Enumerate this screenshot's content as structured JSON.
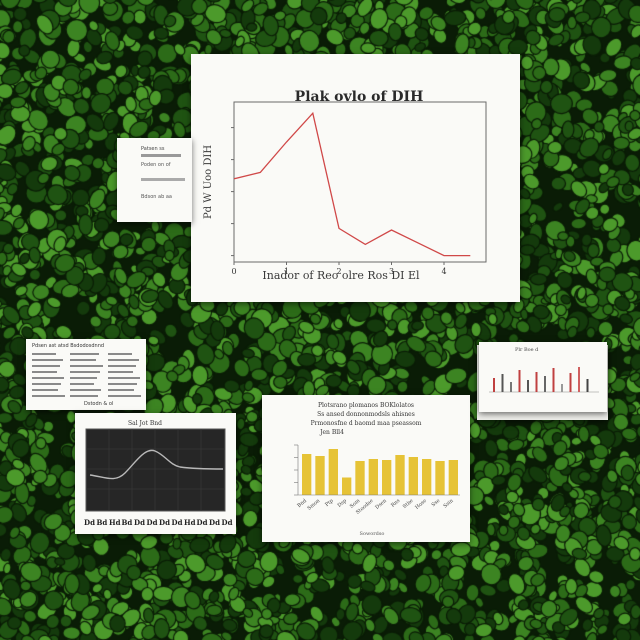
{
  "scene": {
    "background_palette": [
      "#143a0c",
      "#1f5312",
      "#2c6b18",
      "#3c8422",
      "#4c9a2b"
    ],
    "leaf_outline_color": "#0a1c06"
  },
  "main_chart": {
    "title": "Plak ovlo of DIH",
    "xlabel": "Inador of Reo olre Ros DI El",
    "ylabel": "Pd W Uoo DIH",
    "line_color": "#d04848"
  },
  "chart_data": [
    {
      "type": "line",
      "title": "Plak ovlo of DIH",
      "xlabel": "Inador of Reo olre Ros DI El",
      "ylabel": "Pd W Uoo DIH",
      "x": [
        0,
        0.5,
        1,
        1.5,
        2,
        2.5,
        3,
        3.5,
        4,
        4.5
      ],
      "y": [
        0.52,
        0.56,
        0.75,
        0.93,
        0.21,
        0.11,
        0.2,
        0.12,
        0.04,
        0.04
      ],
      "xlim": [
        0,
        4.8
      ],
      "ylim": [
        0,
        1
      ],
      "xticks": [
        "0",
        "1",
        "2",
        "3",
        "4"
      ],
      "yticks": [
        "",
        "",
        "",
        "",
        ""
      ],
      "grid": false
    },
    {
      "type": "bar",
      "title": "Plotsrano plomanos BOKlolatos",
      "xlabel": "Sowordso",
      "ylabel": "",
      "categories": [
        "",
        "",
        "",
        "",
        "",
        "",
        "",
        "",
        "",
        "",
        "",
        ""
      ],
      "values": [
        0.82,
        0.78,
        0.92,
        0.35,
        0.68,
        0.72,
        0.7,
        0.8,
        0.76,
        0.72,
        0.68,
        0.7
      ],
      "ylim": [
        0,
        1
      ],
      "bar_color": "#e6c336"
    }
  ],
  "yellow_chart": {
    "title_lines": [
      "Plotsrano plomanos BOKlolatos",
      "Ss ansed donnonmodsls ahisnes",
      "Prmonosfne d baomd maa pseassom",
      "Jen Bll4"
    ],
    "xlabel": "Sowordso",
    "tick_labels": [
      "Bnd",
      "Smon",
      "Ptp",
      "Dsp",
      "Som",
      "Stoodae",
      "Dsen",
      "Rns",
      "Stbe",
      "Hose",
      "Sse",
      "Ssin"
    ],
    "bar_color": "#e6c336"
  },
  "dark_panel": {
    "title": "Sal Jot Bnd",
    "tick_labels": [
      "Dd",
      "Bd",
      "Hd",
      "Bd",
      "Dd",
      "Dd",
      "Dd",
      "Dd",
      "Hd",
      "Dd",
      "Dd",
      "Dd"
    ],
    "curve_color": "#b8b8b8"
  },
  "note_card": {
    "heading": "Patsen ss",
    "lines": [
      "Poden on of",
      "Bdson ab aa"
    ]
  },
  "text_sheet": {
    "heading": "Pdsen ast atsd Bsdodosdnnd",
    "footer": "Dstodn & ol"
  },
  "stack_chart": {
    "heading": "Plr Boe d",
    "bar_colors": [
      "#c04040",
      "#555555",
      "#777777",
      "#c04040",
      "#555555",
      "#c04040",
      "#666666",
      "#c04040",
      "#999999",
      "#c04040",
      "#d06060",
      "#444444"
    ]
  }
}
